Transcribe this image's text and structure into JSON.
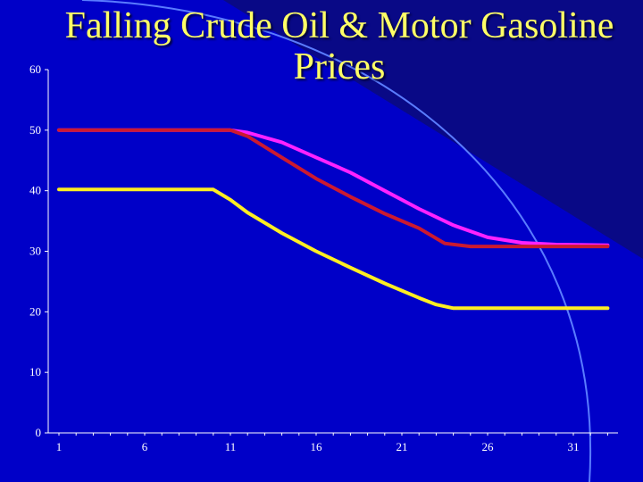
{
  "title_lines": [
    "Falling Crude Oil & Motor Gasoline",
    "Prices"
  ],
  "colors": {
    "background": "#0000c8",
    "dark_panel": "#0a0a7a",
    "arc": "#5a7cff",
    "axis": "#ffffff",
    "title": "#ffff66"
  },
  "chart_data": {
    "type": "line",
    "title": "Falling Crude Oil & Motor Gasoline Prices",
    "xlabel": "",
    "ylabel": "",
    "xlim": [
      1,
      33
    ],
    "ylim": [
      0,
      60
    ],
    "x_ticks": [
      1,
      6,
      11,
      16,
      21,
      26,
      31
    ],
    "y_ticks": [
      0,
      10,
      20,
      30,
      40,
      50,
      60
    ],
    "grid": false,
    "legend": "none",
    "series": [
      {
        "color": "#ff22ff",
        "points": [
          [
            1,
            50
          ],
          [
            11,
            50
          ],
          [
            12,
            49.6
          ],
          [
            14,
            48
          ],
          [
            16,
            45.5
          ],
          [
            18,
            43
          ],
          [
            20,
            40
          ],
          [
            22,
            37
          ],
          [
            24,
            34.3
          ],
          [
            26,
            32.3
          ],
          [
            28,
            31.4
          ],
          [
            30,
            31.1
          ],
          [
            33,
            31
          ]
        ]
      },
      {
        "color": "#cc1a30",
        "points": [
          [
            1,
            50
          ],
          [
            11,
            50
          ],
          [
            12,
            49
          ],
          [
            14,
            45.5
          ],
          [
            16,
            42
          ],
          [
            18,
            39
          ],
          [
            20,
            36.2
          ],
          [
            22,
            33.8
          ],
          [
            23.5,
            31.3
          ],
          [
            25,
            30.8
          ],
          [
            27,
            30.8
          ],
          [
            33,
            30.8
          ]
        ]
      },
      {
        "color": "#ffee22",
        "points": [
          [
            1,
            40.2
          ],
          [
            10,
            40.2
          ],
          [
            11,
            38.5
          ],
          [
            12,
            36.4
          ],
          [
            14,
            33
          ],
          [
            16,
            30
          ],
          [
            18,
            27.3
          ],
          [
            20,
            24.7
          ],
          [
            22,
            22.3
          ],
          [
            23,
            21.2
          ],
          [
            24,
            20.6
          ],
          [
            27,
            20.6
          ],
          [
            33,
            20.6
          ]
        ]
      }
    ]
  }
}
